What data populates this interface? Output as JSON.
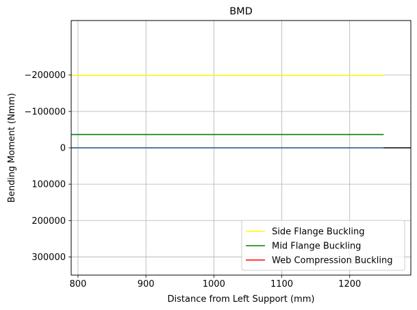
{
  "chart_data": {
    "type": "line",
    "title": "BMD",
    "xlabel": "Distance from Left Support (mm)",
    "ylabel": "Bending Moment (Nmm)",
    "xlim": [
      790,
      1290
    ],
    "ylim": [
      350000,
      -350000
    ],
    "y_inverted": true,
    "grid": true,
    "legend_position": "lower-right",
    "x_ticks": [
      800,
      900,
      1000,
      1100,
      1200
    ],
    "y_ticks": [
      -200000,
      -100000,
      0,
      100000,
      200000,
      300000
    ],
    "x_tick_labels": [
      "800",
      "900",
      "1000",
      "1100",
      "1200"
    ],
    "y_tick_labels": [
      "−200000",
      "−100000",
      "0",
      "100000",
      "200000",
      "300000"
    ],
    "series": [
      {
        "name": "Side Flange Buckling",
        "color": "#ffff00",
        "in_legend": true,
        "x": [
          790,
          1250
        ],
        "y": [
          -199000,
          -199000
        ]
      },
      {
        "name": "Mid Flange Buckling",
        "color": "#008000",
        "in_legend": true,
        "x": [
          790,
          1250
        ],
        "y": [
          -36500,
          -36500
        ]
      },
      {
        "name": "Web Compression Buckling",
        "color": "#ff0000",
        "in_legend": true,
        "x": [
          790,
          1250
        ],
        "y": [
          0,
          0
        ]
      },
      {
        "name": "",
        "color": "#1f77b4",
        "in_legend": false,
        "x": [
          790,
          1250
        ],
        "y": [
          0,
          0
        ]
      },
      {
        "name": "",
        "color": "#000000",
        "in_legend": false,
        "x": [
          1250,
          1290
        ],
        "y": [
          0,
          0
        ]
      }
    ]
  }
}
